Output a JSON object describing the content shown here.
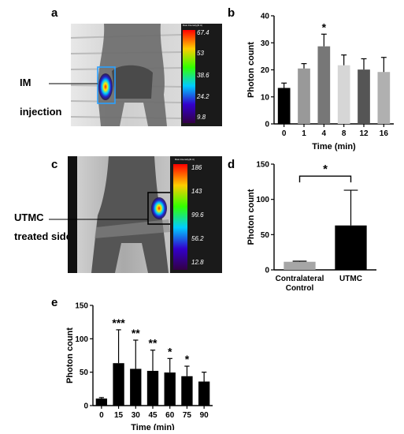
{
  "panels": {
    "a": {
      "letter": "a",
      "label_line1": "IM",
      "label_line2": "injection",
      "scale_ticks": [
        "67.4",
        "53",
        "38.6",
        "24.2",
        "9.8"
      ],
      "scale_header": "Raw Intensity(R.U)"
    },
    "c": {
      "letter": "c",
      "label_line1": "UTMC",
      "label_line2": "treated side",
      "scale_ticks": [
        "186",
        "143",
        "99.6",
        "56.2",
        "12.8"
      ],
      "scale_header": "Raw Intensity(R.U)"
    },
    "b": {
      "letter": "b"
    },
    "d": {
      "letter": "d"
    },
    "e": {
      "letter": "e"
    }
  },
  "colors": {
    "bar_black": "#000000",
    "bar_gray": "#a6a6a6"
  },
  "chart_data": [
    {
      "id": "b",
      "type": "bar",
      "categories": [
        "0",
        "1",
        "4",
        "8",
        "12",
        "16"
      ],
      "values": [
        13.3,
        20.5,
        28.7,
        21.7,
        20.1,
        19.2
      ],
      "errors": [
        1.8,
        1.8,
        4.5,
        3.8,
        4.0,
        5.4
      ],
      "bar_colors": [
        "#000000",
        "#999999",
        "#777777",
        "#d6d6d6",
        "#555555",
        "#b0b0b0"
      ],
      "significance": [
        "",
        "",
        "*",
        "",
        "",
        ""
      ],
      "xlabel": "Time (min)",
      "ylabel": "Photon count",
      "ylim": [
        0,
        40
      ],
      "yticks": [
        0,
        10,
        20,
        30,
        40
      ]
    },
    {
      "id": "d",
      "type": "bar",
      "categories": [
        "Contralateral\nControl",
        "UTMC"
      ],
      "category_lines": [
        [
          "Contralateral",
          "Control"
        ],
        [
          "UTMC"
        ]
      ],
      "values": [
        11.5,
        63
      ],
      "errors": [
        0.8,
        50
      ],
      "bar_colors": [
        "#a6a6a6",
        "#000000"
      ],
      "bracket_significance": "*",
      "xlabel": "",
      "ylabel": "Photon count",
      "ylim": [
        0,
        150
      ],
      "yticks": [
        0,
        50,
        100,
        150
      ]
    },
    {
      "id": "e",
      "type": "bar",
      "categories": [
        "0",
        "15",
        "30",
        "45",
        "60",
        "75",
        "90"
      ],
      "values": [
        10.5,
        63.5,
        55,
        52,
        49.5,
        44,
        36
      ],
      "errors": [
        1.5,
        50,
        43,
        31,
        21,
        15,
        14
      ],
      "bar_colors": [
        "#000000",
        "#000000",
        "#000000",
        "#000000",
        "#000000",
        "#000000",
        "#000000"
      ],
      "significance": [
        "",
        "***",
        "**",
        "**",
        "*",
        "*",
        ""
      ],
      "xlabel": "Time (min)",
      "ylabel": "Photon count",
      "ylim": [
        0,
        150
      ],
      "yticks": [
        0,
        50,
        100,
        150
      ]
    }
  ]
}
